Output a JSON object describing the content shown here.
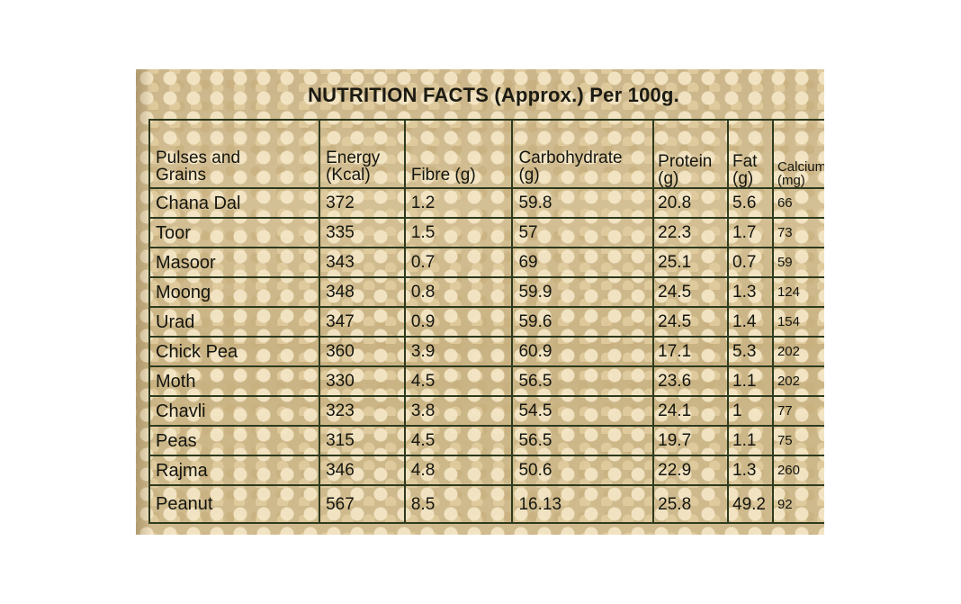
{
  "title": "NUTRITION FACTS (Approx.) Per 100g.",
  "columns": [
    {
      "line1": "Pulses and",
      "line2": "Grains"
    },
    {
      "line1": "Energy",
      "line2": "(Kcal)"
    },
    {
      "line1": "",
      "line2": "Fibre (g)"
    },
    {
      "line1": "Carbohydrate",
      "line2": "(g)"
    },
    {
      "line1": "Protein",
      "line2": "(g)"
    },
    {
      "line1": "Fat",
      "line2": "(g)"
    },
    {
      "line1": "Calcium",
      "line2": "(mg)"
    }
  ],
  "rows": [
    {
      "name": "Chana Dal",
      "energy": "372",
      "fibre": "1.2",
      "carbohydrate": "59.8",
      "protein": "20.8",
      "fat": "5.6",
      "calcium": "66"
    },
    {
      "name": "Toor",
      "energy": "335",
      "fibre": "1.5",
      "carbohydrate": "57",
      "protein": "22.3",
      "fat": "1.7",
      "calcium": "73"
    },
    {
      "name": "Masoor",
      "energy": "343",
      "fibre": "0.7",
      "carbohydrate": "69",
      "protein": "25.1",
      "fat": "0.7",
      "calcium": "59"
    },
    {
      "name": "Moong",
      "energy": "348",
      "fibre": "0.8",
      "carbohydrate": "59.9",
      "protein": "24.5",
      "fat": "1.3",
      "calcium": "124"
    },
    {
      "name": "Urad",
      "energy": "347",
      "fibre": "0.9",
      "carbohydrate": "59.6",
      "protein": "24.5",
      "fat": "1.4",
      "calcium": "154"
    },
    {
      "name": "Chick Pea",
      "energy": "360",
      "fibre": "3.9",
      "carbohydrate": "60.9",
      "protein": "17.1",
      "fat": "5.3",
      "calcium": "202"
    },
    {
      "name": "Moth",
      "energy": "330",
      "fibre": "4.5",
      "carbohydrate": "56.5",
      "protein": "23.6",
      "fat": "1.1",
      "calcium": "202"
    },
    {
      "name": "Chavli",
      "energy": "323",
      "fibre": "3.8",
      "carbohydrate": "54.5",
      "protein": "24.1",
      "fat": "1",
      "calcium": "77"
    },
    {
      "name": "Peas",
      "energy": "315",
      "fibre": "4.5",
      "carbohydrate": "56.5",
      "protein": "19.7",
      "fat": "1.1",
      "calcium": "75"
    },
    {
      "name": "Rajma",
      "energy": "346",
      "fibre": "4.8",
      "carbohydrate": "50.6",
      "protein": "22.9",
      "fat": "1.3",
      "calcium": "260"
    },
    {
      "name": "Peanut",
      "energy": "567",
      "fibre": "8.5",
      "carbohydrate": "16.13",
      "protein": "25.8",
      "fat": "49.2",
      "calcium": "92"
    }
  ]
}
